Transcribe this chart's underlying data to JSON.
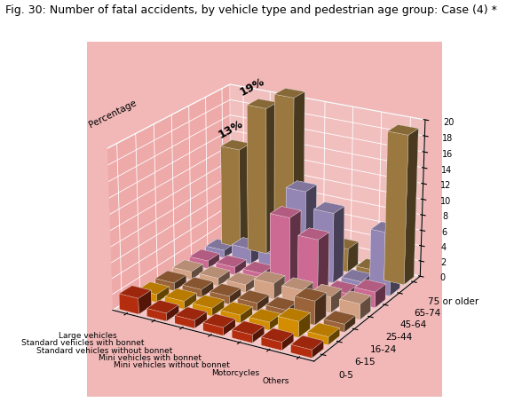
{
  "title": "Fig. 30: Number of fatal accidents, by vehicle type and pedestrian age group: Case (4) *",
  "zlabel": "Percentage",
  "vehicle_types": [
    "Large vehicles",
    "Standard vehicles\nwith bonnet",
    "Standard vehicles\nwithout bonnet",
    "Mini vehicles\nwith bonnet",
    "Mini vehicles\nwithout bonnet",
    "Motorcycles",
    "Others"
  ],
  "age_groups": [
    "0-5",
    "6-15",
    "16-24",
    "25-44",
    "45-64",
    "65-74",
    "75 or older"
  ],
  "data": [
    [
      2,
      1,
      1,
      1,
      1,
      1,
      13
    ],
    [
      1,
      1,
      1,
      1,
      1,
      2,
      19
    ],
    [
      1,
      1,
      1,
      1,
      1,
      2,
      21
    ],
    [
      1,
      1,
      1,
      2,
      9,
      11,
      3
    ],
    [
      1,
      1,
      1,
      2,
      7,
      9,
      3
    ],
    [
      1,
      2,
      3,
      2,
      1,
      1,
      1
    ],
    [
      1,
      1,
      1,
      2,
      2,
      8,
      19
    ]
  ],
  "bar_colors": {
    "0-5": "#cc3311",
    "6-15": "#f0a000",
    "16-24": "#b07040",
    "25-44": "#f0b898",
    "45-64": "#e878a8",
    "65-74": "#a898cc",
    "75 or older": "#b08848"
  },
  "ylim": [
    0,
    20
  ],
  "yticks": [
    0,
    2,
    4,
    6,
    8,
    10,
    12,
    14,
    16,
    18,
    20
  ],
  "wall_color": "#f2b8b8",
  "title_fontsize": 9,
  "elev": 22,
  "azim": -60
}
